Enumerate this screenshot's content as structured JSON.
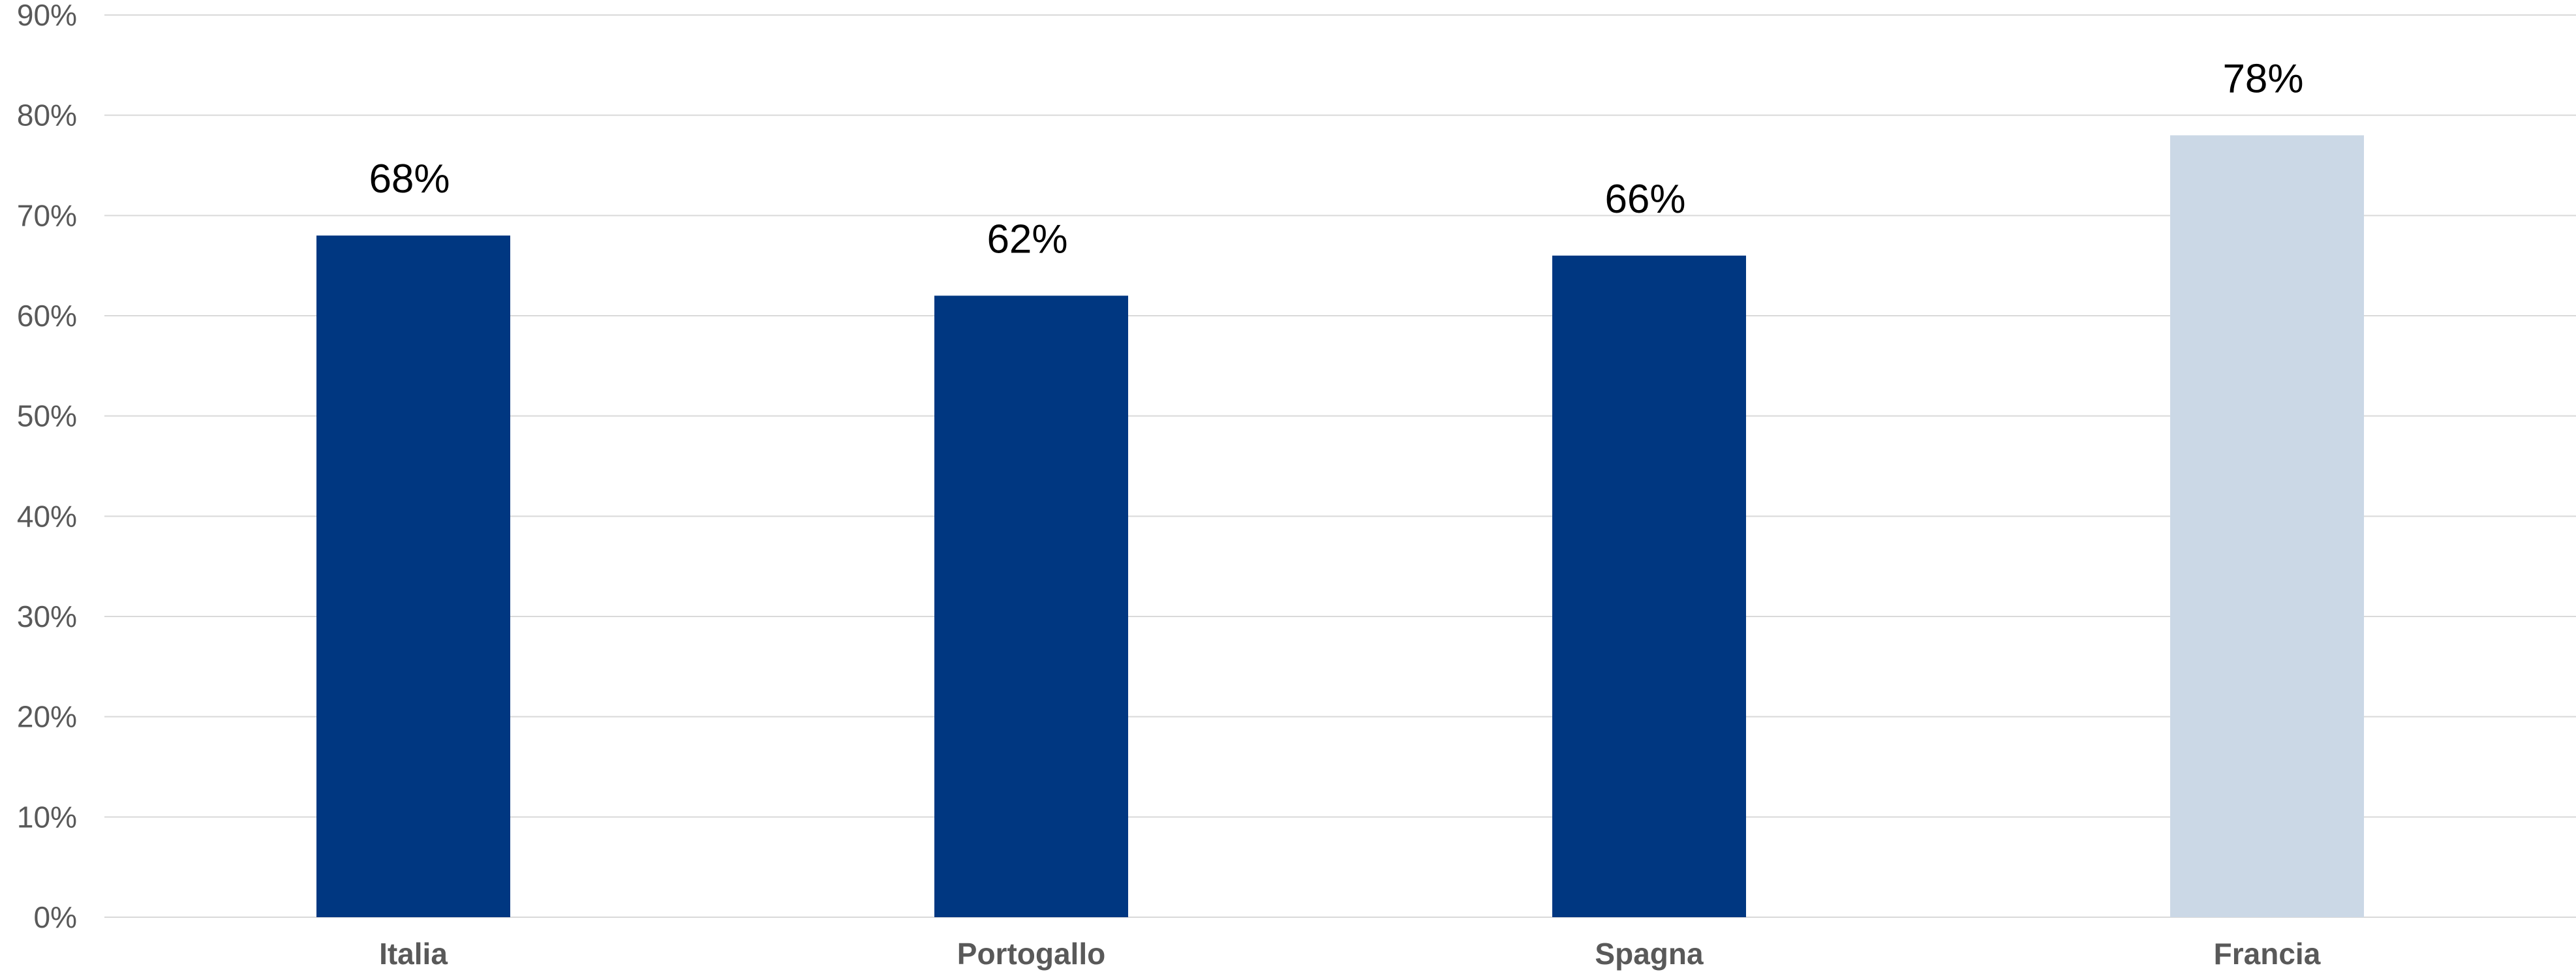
{
  "chart_data": {
    "type": "bar",
    "categories": [
      "Italia",
      "Portogallo",
      "Spagna",
      "Francia"
    ],
    "values": [
      68,
      62,
      66,
      78
    ],
    "data_labels": [
      "68%",
      "62%",
      "66%",
      "78%"
    ],
    "title": "",
    "xlabel": "",
    "ylabel": "",
    "ylim": [
      0,
      90
    ],
    "y_ticks": [
      "0%",
      "10%",
      "20%",
      "30%",
      "40%",
      "50%",
      "60%",
      "70%",
      "80%",
      "90%"
    ],
    "grid": true,
    "legend": "none",
    "bar_colors": [
      "#003781",
      "#003781",
      "#003781",
      "#cbd8e6"
    ]
  }
}
